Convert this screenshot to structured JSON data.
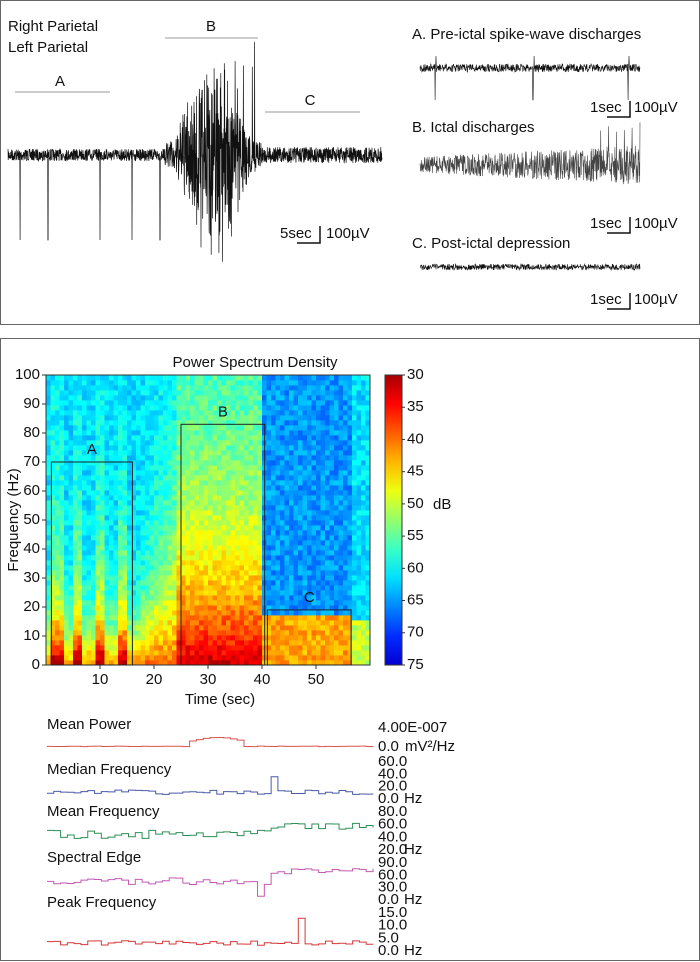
{
  "eeg": {
    "channels": [
      "Right Parietal",
      "Left Parietal"
    ],
    "segments": [
      "A",
      "B",
      "C"
    ],
    "scale_bar": {
      "time": "5sec",
      "amplitude": "100µV"
    },
    "insets": [
      {
        "title": "A. Pre-ictal spike-wave discharges",
        "scale_bar": {
          "time": "1sec",
          "amplitude": "100µV"
        }
      },
      {
        "title": "B. Ictal discharges",
        "scale_bar": {
          "time": "1sec",
          "amplitude": "100µV"
        }
      },
      {
        "title": "C. Post-ictal depression",
        "scale_bar": {
          "time": "1sec",
          "amplitude": "100µV"
        }
      }
    ]
  },
  "chart_data": [
    {
      "type": "heatmap",
      "title": "Power Spectrum Density",
      "xlabel": "Time (sec)",
      "ylabel": "Frequency (Hz)",
      "xlim": [
        0,
        60
      ],
      "xticks": [
        10,
        20,
        30,
        40,
        50
      ],
      "ylim": [
        0,
        100
      ],
      "yticks": [
        0,
        10,
        20,
        30,
        40,
        50,
        60,
        70,
        80,
        90,
        100
      ],
      "colorbar": {
        "label": "dB",
        "lim": [
          30,
          75
        ],
        "ticks": [
          30,
          35,
          40,
          45,
          50,
          55,
          60,
          65,
          70,
          75
        ]
      },
      "regions": [
        {
          "label": "A",
          "x": [
            1,
            16
          ],
          "y": [
            0,
            70
          ]
        },
        {
          "label": "B",
          "x": [
            25,
            40.5
          ],
          "y": [
            0,
            83
          ]
        },
        {
          "label": "C",
          "x": [
            41,
            56.5
          ],
          "y": [
            0,
            19
          ]
        }
      ]
    },
    {
      "type": "line",
      "title": "Mean Power",
      "unit": "mV²/Hz",
      "color": "#d9534f",
      "ylim": [
        0,
        4e-07
      ],
      "yticks": [
        {
          "value": 4e-07,
          "label": "4.00E-007"
        },
        {
          "value": 0,
          "label": "0.0"
        }
      ]
    },
    {
      "type": "line",
      "title": "Median Frequency",
      "unit": "Hz",
      "color": "#4a5aa8",
      "ylim": [
        0,
        60
      ],
      "yticks": [
        {
          "value": 60,
          "label": "60.0"
        },
        {
          "value": 40,
          "label": "40.0"
        },
        {
          "value": 20,
          "label": "20.0"
        },
        {
          "value": 0,
          "label": "0.0"
        }
      ]
    },
    {
      "type": "line",
      "title": "Mean Frequency",
      "unit": "Hz",
      "color": "#2e8f55",
      "ylim": [
        20,
        80
      ],
      "yticks": [
        {
          "value": 80,
          "label": "80.0"
        },
        {
          "value": 60,
          "label": "60.0"
        },
        {
          "value": 40,
          "label": "40.0"
        },
        {
          "value": 20,
          "label": "20.0"
        }
      ]
    },
    {
      "type": "line",
      "title": "Spectral Edge",
      "unit": "Hz",
      "color": "#c259b5",
      "ylim": [
        0,
        90
      ],
      "yticks": [
        {
          "value": 90,
          "label": "90.0"
        },
        {
          "value": 60,
          "label": "60.0"
        },
        {
          "value": 30,
          "label": "30.0"
        },
        {
          "value": 0,
          "label": "0.0"
        }
      ]
    },
    {
      "type": "line",
      "title": "Peak Frequency",
      "unit": "Hz",
      "color": "#d43a3a",
      "ylim": [
        0,
        15
      ],
      "yticks": [
        {
          "value": 15,
          "label": "15.0"
        },
        {
          "value": 10,
          "label": "10.0"
        },
        {
          "value": 5,
          "label": "5.0"
        },
        {
          "value": 0,
          "label": "0.0"
        }
      ]
    }
  ]
}
